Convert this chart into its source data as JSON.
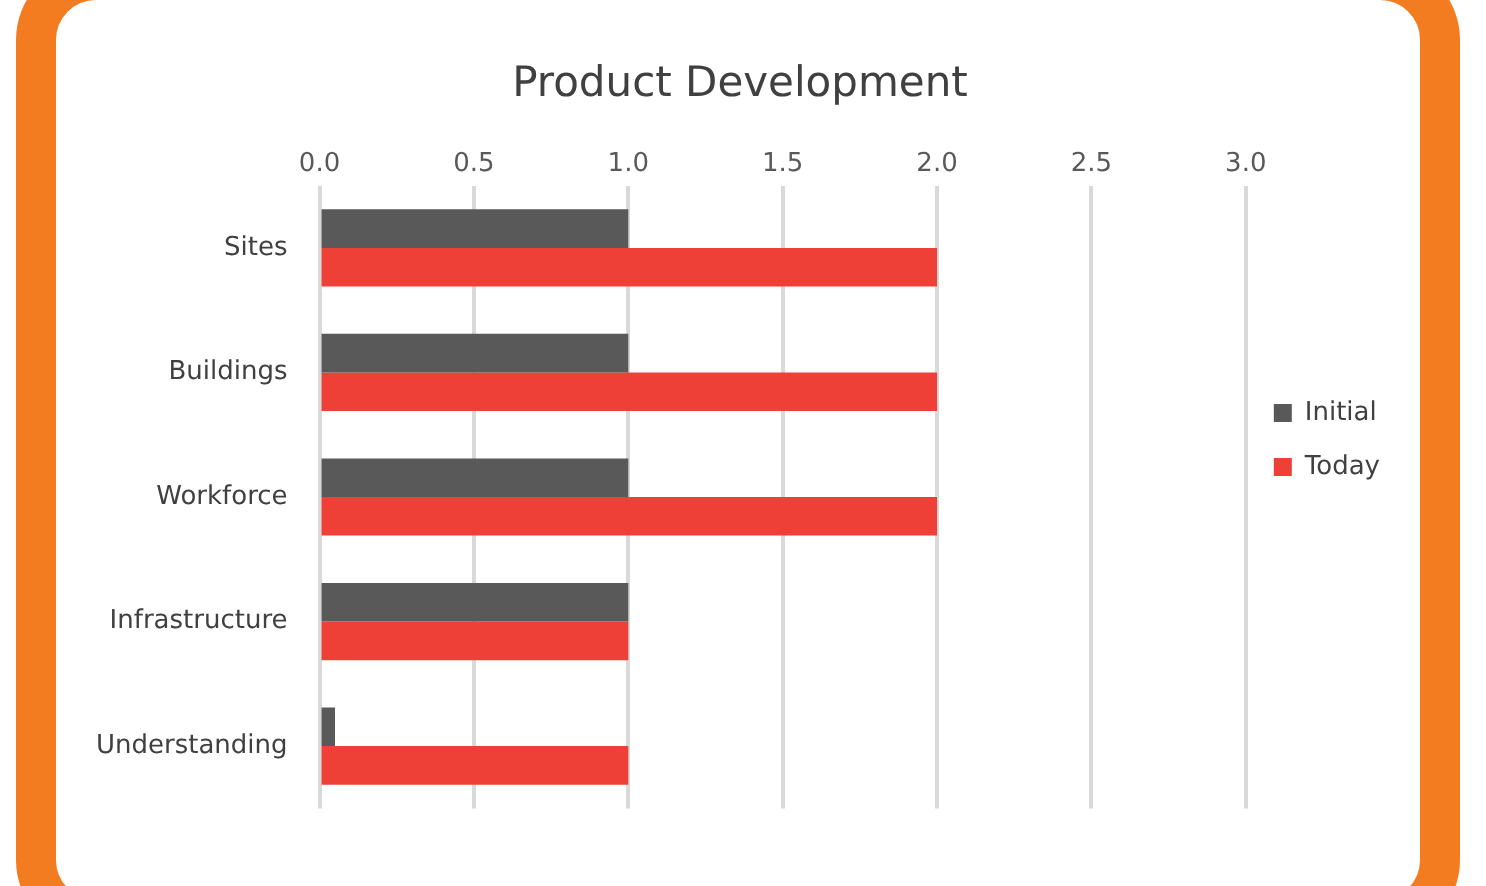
{
  "chart_data": {
    "type": "bar",
    "orientation": "horizontal",
    "title": "Product Development",
    "categories": [
      "Sites",
      "Buildings",
      "Workforce",
      "Infrastructure",
      "Understanding"
    ],
    "series": [
      {
        "name": "Initial",
        "color": "#595959",
        "values": [
          1,
          1,
          1,
          1,
          0.05
        ]
      },
      {
        "name": "Today",
        "color": "#ee4037",
        "values": [
          2,
          2,
          2,
          1,
          1
        ]
      }
    ],
    "xlim": [
      0,
      3
    ],
    "xticks": [
      {
        "value": 0,
        "label": "0.0"
      },
      {
        "value": 0.5,
        "label": "0.5"
      },
      {
        "value": 1,
        "label": "1.0"
      },
      {
        "value": 1.5,
        "label": "1.5"
      },
      {
        "value": 2,
        "label": "2.0"
      },
      {
        "value": 2.5,
        "label": "2.5"
      },
      {
        "value": 3,
        "label": "3.0"
      }
    ],
    "grid": "x",
    "legend": "right"
  }
}
